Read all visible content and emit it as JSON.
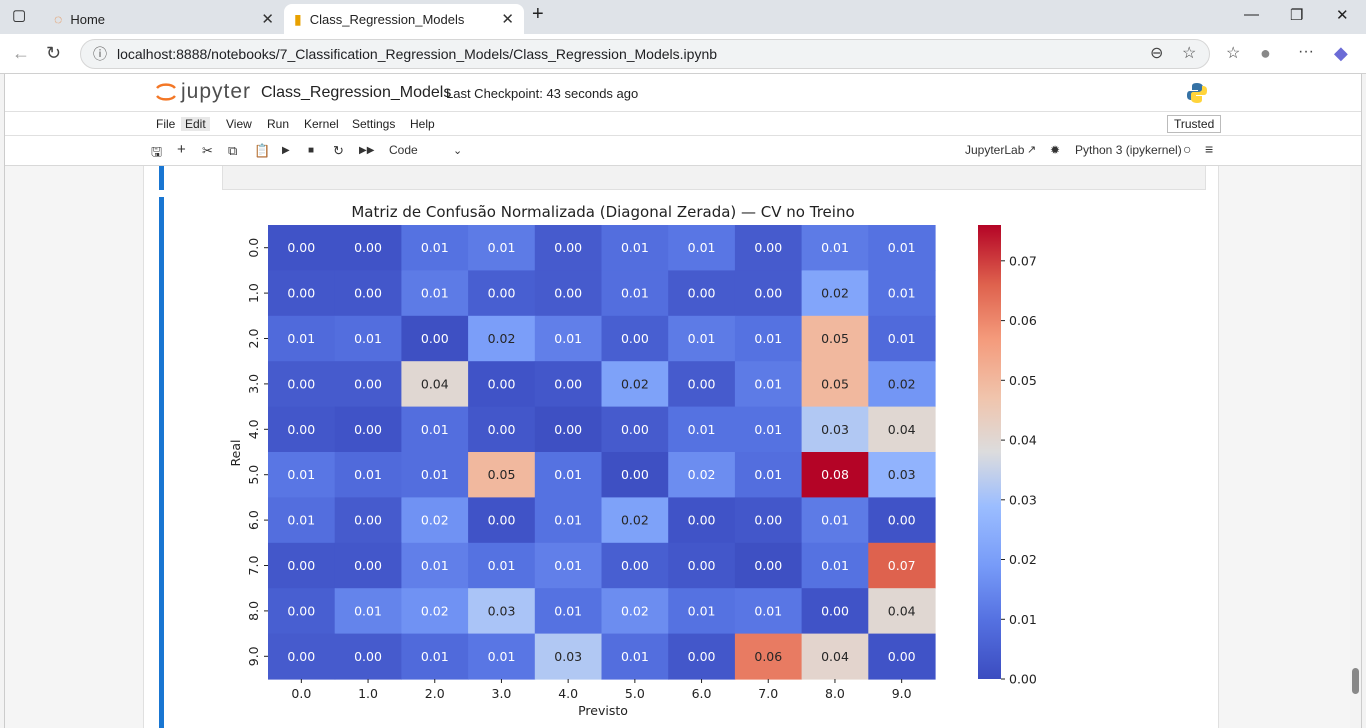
{
  "browser": {
    "tabs": [
      {
        "title": "Home"
      },
      {
        "title": "Class_Regression_Models"
      }
    ],
    "url": "localhost:8888/notebooks/7_Classification_Regression_Models/Class_Regression_Models.ipynb"
  },
  "jupyter": {
    "logo_text": "jupyter",
    "notebook_name": "Class_Regression_Models",
    "checkpoint": "Last Checkpoint: 43 seconds ago",
    "menu": [
      "File",
      "Edit",
      "Run",
      "Kernel",
      "Settings",
      "Help"
    ],
    "view_menu": "View",
    "trusted": "Trusted",
    "cell_type": "Code",
    "jupyterlab_link": "JupyterLab",
    "kernel": "Python 3 (ipykernel)"
  },
  "chart_data": {
    "type": "heatmap",
    "title": "Matriz de Confusão Normalizada (Diagonal Zerada) — CV no Treino",
    "xlabel": "Previsto",
    "ylabel": "Real",
    "x_categories": [
      "0.0",
      "1.0",
      "2.0",
      "3.0",
      "4.0",
      "5.0",
      "6.0",
      "7.0",
      "8.0",
      "9.0"
    ],
    "y_categories": [
      "0.0",
      "1.0",
      "2.0",
      "3.0",
      "4.0",
      "5.0",
      "6.0",
      "7.0",
      "8.0",
      "9.0"
    ],
    "values": [
      [
        0.0,
        0.0,
        0.01,
        0.01,
        0.0,
        0.01,
        0.01,
        0.0,
        0.01,
        0.01
      ],
      [
        0.0,
        0.0,
        0.01,
        0.0,
        0.0,
        0.01,
        0.0,
        0.0,
        0.02,
        0.01
      ],
      [
        0.01,
        0.01,
        0.0,
        0.02,
        0.01,
        0.0,
        0.01,
        0.01,
        0.05,
        0.01
      ],
      [
        0.0,
        0.0,
        0.04,
        0.0,
        0.0,
        0.02,
        0.0,
        0.01,
        0.05,
        0.02
      ],
      [
        0.0,
        0.0,
        0.01,
        0.0,
        0.0,
        0.0,
        0.01,
        0.01,
        0.03,
        0.04
      ],
      [
        0.01,
        0.01,
        0.01,
        0.05,
        0.01,
        0.0,
        0.02,
        0.01,
        0.08,
        0.03
      ],
      [
        0.01,
        0.0,
        0.02,
        0.0,
        0.01,
        0.02,
        0.0,
        0.0,
        0.01,
        0.0
      ],
      [
        0.0,
        0.0,
        0.01,
        0.01,
        0.01,
        0.0,
        0.0,
        0.0,
        0.01,
        0.07
      ],
      [
        0.0,
        0.01,
        0.02,
        0.03,
        0.01,
        0.02,
        0.01,
        0.01,
        0.0,
        0.04
      ],
      [
        0.0,
        0.0,
        0.01,
        0.01,
        0.03,
        0.01,
        0.0,
        0.06,
        0.04,
        0.0
      ]
    ],
    "shade": [
      [
        0.002,
        0.002,
        0.01,
        0.012,
        0.004,
        0.009,
        0.011,
        0.004,
        0.012,
        0.01
      ],
      [
        0.003,
        0.003,
        0.012,
        0.005,
        0.004,
        0.009,
        0.004,
        0.004,
        0.022,
        0.01
      ],
      [
        0.008,
        0.009,
        0.001,
        0.02,
        0.013,
        0.005,
        0.012,
        0.01,
        0.05,
        0.008
      ],
      [
        0.004,
        0.004,
        0.04,
        0.002,
        0.003,
        0.021,
        0.004,
        0.012,
        0.05,
        0.018
      ],
      [
        0.003,
        0.002,
        0.009,
        0.003,
        0.001,
        0.004,
        0.01,
        0.01,
        0.032,
        0.04
      ],
      [
        0.011,
        0.008,
        0.009,
        0.05,
        0.01,
        0.001,
        0.016,
        0.009,
        0.076,
        0.026
      ],
      [
        0.009,
        0.004,
        0.017,
        0.002,
        0.01,
        0.021,
        0.002,
        0.003,
        0.012,
        0.002
      ],
      [
        0.003,
        0.003,
        0.013,
        0.01,
        0.013,
        0.005,
        0.003,
        0.001,
        0.01,
        0.066
      ],
      [
        0.005,
        0.014,
        0.017,
        0.031,
        0.01,
        0.016,
        0.01,
        0.011,
        0.002,
        0.04
      ],
      [
        0.004,
        0.004,
        0.008,
        0.011,
        0.032,
        0.009,
        0.003,
        0.062,
        0.041,
        0.002
      ]
    ],
    "colormap": "coolwarm",
    "vmin": 0.0,
    "vmax": 0.076,
    "colorbar_ticks": [
      "0.00",
      "0.01",
      "0.02",
      "0.03",
      "0.04",
      "0.05",
      "0.06",
      "0.07"
    ],
    "colorbar_values": [
      0.0,
      0.01,
      0.02,
      0.03,
      0.04,
      0.05,
      0.06,
      0.07
    ]
  }
}
